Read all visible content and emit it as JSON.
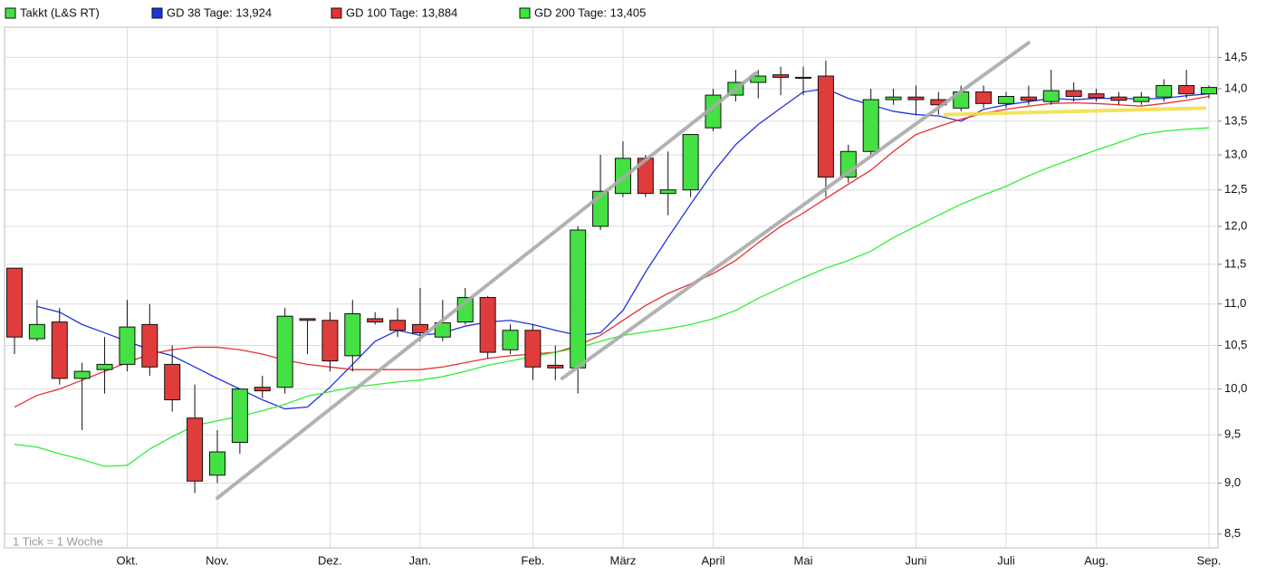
{
  "chart_data": {
    "type": "candlestick",
    "series_name": "Takkt (L&S RT)",
    "up_color": "#44e044",
    "down_color": "#e03c3c",
    "annotation": "1 Tick = 1 Woche",
    "log_scale": true,
    "grid": true,
    "categories": [
      null,
      null,
      null,
      null,
      null,
      "Okt.",
      null,
      null,
      null,
      "Nov.",
      null,
      null,
      null,
      null,
      "Dez.",
      null,
      null,
      null,
      "Jan.",
      null,
      null,
      null,
      null,
      "Feb.",
      null,
      null,
      null,
      "März",
      null,
      null,
      null,
      "April",
      null,
      null,
      null,
      "Mai",
      null,
      null,
      null,
      null,
      "Juni",
      null,
      null,
      null,
      "Juli",
      null,
      null,
      null,
      "Aug.",
      null,
      null,
      null,
      null,
      "Sep."
    ],
    "open": [
      11.45,
      10.58,
      10.78,
      10.12,
      10.22,
      10.28,
      10.75,
      10.28,
      9.68,
      9.08,
      9.42,
      10.02,
      10.02,
      10.82,
      10.8,
      10.38,
      10.82,
      10.8,
      10.75,
      10.6,
      10.78,
      11.08,
      10.45,
      10.68,
      10.27,
      10.24,
      12.0,
      12.45,
      12.95,
      12.45,
      12.5,
      13.4,
      13.9,
      14.1,
      14.22,
      14.18,
      14.2,
      12.68,
      13.05,
      13.83,
      13.87,
      13.83,
      13.7,
      13.95,
      13.77,
      13.87,
      13.8,
      13.97,
      13.92,
      13.87,
      13.8,
      13.87,
      14.05,
      13.92
    ],
    "high": [
      11.45,
      11.05,
      10.95,
      10.3,
      10.6,
      11.05,
      11.0,
      10.5,
      10.05,
      9.55,
      10.0,
      10.15,
      10.95,
      10.82,
      10.9,
      11.05,
      10.9,
      10.95,
      11.2,
      11.05,
      11.2,
      11.1,
      10.75,
      10.75,
      10.5,
      12.0,
      13.0,
      13.2,
      13.0,
      13.05,
      13.3,
      14.0,
      14.3,
      14.3,
      14.35,
      14.35,
      14.45,
      13.15,
      14.0,
      14.0,
      14.05,
      13.95,
      14.05,
      14.05,
      13.95,
      14.05,
      14.3,
      14.1,
      14.0,
      13.95,
      13.95,
      14.15,
      14.3,
      14.05
    ],
    "low": [
      10.4,
      10.55,
      10.05,
      9.55,
      9.95,
      10.2,
      10.15,
      9.75,
      8.9,
      9.0,
      9.3,
      9.9,
      9.95,
      10.4,
      10.2,
      10.2,
      10.75,
      10.6,
      10.55,
      10.55,
      10.75,
      10.35,
      10.4,
      10.1,
      10.1,
      9.95,
      11.95,
      12.4,
      12.4,
      12.15,
      12.4,
      13.35,
      13.8,
      13.85,
      13.9,
      13.9,
      12.4,
      12.6,
      13.0,
      13.75,
      13.6,
      13.6,
      13.65,
      13.7,
      13.7,
      13.75,
      13.75,
      13.8,
      13.8,
      13.75,
      13.75,
      13.8,
      13.85,
      13.85
    ],
    "close": [
      10.6,
      10.75,
      10.12,
      10.2,
      10.28,
      10.72,
      10.25,
      9.88,
      9.02,
      9.32,
      10.0,
      9.98,
      10.85,
      10.8,
      10.32,
      10.88,
      10.78,
      10.68,
      10.65,
      10.77,
      11.08,
      10.42,
      10.68,
      10.25,
      10.24,
      11.95,
      12.48,
      12.95,
      12.45,
      12.5,
      13.3,
      13.9,
      14.1,
      14.2,
      14.18,
      14.18,
      12.68,
      13.05,
      13.83,
      13.87,
      13.83,
      13.75,
      13.95,
      13.77,
      13.88,
      13.82,
      13.97,
      13.88,
      13.86,
      13.82,
      13.87,
      14.05,
      13.92,
      14.02
    ],
    "series": [
      {
        "name": "GD 38 Tage: 13,924",
        "color": "#2233dd",
        "values": [
          null,
          10.97,
          10.9,
          10.75,
          10.65,
          10.55,
          10.45,
          10.38,
          10.25,
          10.12,
          10.0,
          9.88,
          9.78,
          9.8,
          10.02,
          10.28,
          10.55,
          10.68,
          10.62,
          10.65,
          10.73,
          10.78,
          10.8,
          10.75,
          10.68,
          10.62,
          10.65,
          10.92,
          11.4,
          11.85,
          12.3,
          12.75,
          13.15,
          13.45,
          13.7,
          13.95,
          14.0,
          13.85,
          13.75,
          13.65,
          13.6,
          13.58,
          13.5,
          13.68,
          13.75,
          13.8,
          13.85,
          13.83,
          13.85,
          13.85,
          13.84,
          13.85,
          13.89,
          13.92
        ]
      },
      {
        "name": "GD 100 Tage: 13,884",
        "color": "#e83030",
        "values": [
          9.8,
          9.93,
          10.0,
          10.1,
          10.2,
          10.3,
          10.4,
          10.45,
          10.48,
          10.48,
          10.45,
          10.4,
          10.33,
          10.28,
          10.25,
          10.22,
          10.22,
          10.22,
          10.22,
          10.25,
          10.3,
          10.35,
          10.38,
          10.4,
          10.42,
          10.5,
          10.62,
          10.8,
          10.98,
          11.13,
          11.25,
          11.38,
          11.55,
          11.78,
          12.0,
          12.18,
          12.38,
          12.58,
          12.78,
          13.05,
          13.3,
          13.42,
          13.53,
          13.62,
          13.68,
          13.73,
          13.77,
          13.78,
          13.77,
          13.75,
          13.73,
          13.77,
          13.82,
          13.88
        ]
      },
      {
        "name": "GD 200 Tage: 13,405",
        "color": "#33ee33",
        "values": [
          9.4,
          9.37,
          9.3,
          9.24,
          9.17,
          9.18,
          9.35,
          9.48,
          9.6,
          9.65,
          9.7,
          9.76,
          9.83,
          9.92,
          9.97,
          10.02,
          10.05,
          10.08,
          10.1,
          10.14,
          10.2,
          10.27,
          10.32,
          10.37,
          10.42,
          10.47,
          10.55,
          10.62,
          10.66,
          10.7,
          10.75,
          10.82,
          10.92,
          11.07,
          11.2,
          11.33,
          11.45,
          11.55,
          11.67,
          11.85,
          12.0,
          12.15,
          12.3,
          12.43,
          12.55,
          12.7,
          12.83,
          12.95,
          13.07,
          13.18,
          13.3,
          13.35,
          13.38,
          13.4
        ]
      }
    ],
    "trend_lines": [
      {
        "color": "#aaaaaa",
        "x": [
          9,
          32.9
        ],
        "y": [
          8.85,
          14.25
        ]
      },
      {
        "color": "#aaaaaa",
        "x": [
          24.3,
          45.0
        ],
        "y": [
          10.12,
          14.74
        ]
      },
      {
        "color": "#f2e04a",
        "x": [
          41.3,
          52.8
        ],
        "y": [
          13.6,
          13.7
        ]
      }
    ],
    "ylim": [
      8.37,
      15.0
    ],
    "yticks": [
      {
        "value": 8.5,
        "label": "8,5"
      },
      {
        "value": 9.0,
        "label": "9,0"
      },
      {
        "value": 9.5,
        "label": "9,5"
      },
      {
        "value": 10.0,
        "label": "10,0"
      },
      {
        "value": 10.5,
        "label": "10,5"
      },
      {
        "value": 11.0,
        "label": "11,0"
      },
      {
        "value": 11.5,
        "label": "11,5"
      },
      {
        "value": 12.0,
        "label": "12,0"
      },
      {
        "value": 12.5,
        "label": "12,5"
      },
      {
        "value": 13.0,
        "label": "13,0"
      },
      {
        "value": 13.5,
        "label": "13,5"
      },
      {
        "value": 14.0,
        "label": "14,0"
      },
      {
        "value": 14.5,
        "label": "14,5"
      }
    ]
  }
}
